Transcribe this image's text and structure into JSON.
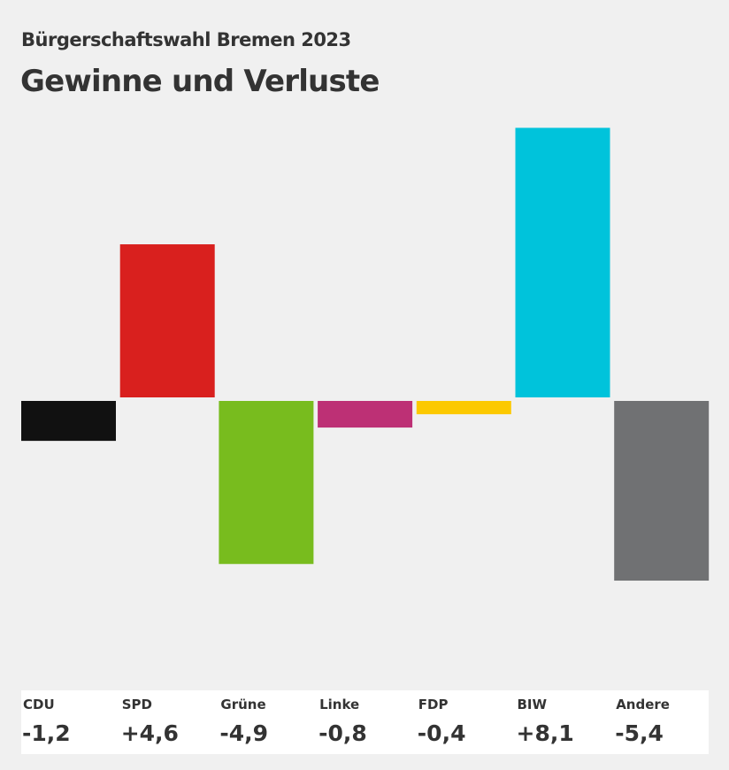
{
  "chart_data": {
    "type": "bar",
    "subtitle": "Bürgerschaftswahl Bremen 2023",
    "title": "Gewinne und Verluste",
    "categories": [
      "CDU",
      "SPD",
      "Grüne",
      "Linke",
      "FDP",
      "BIW",
      "Andere"
    ],
    "values": [
      -1.2,
      4.6,
      -4.9,
      -0.8,
      -0.4,
      8.1,
      -5.4
    ],
    "value_labels": [
      "-1,2",
      "+4,6",
      "-4,9",
      "-0,8",
      "-0,4",
      "+8,1",
      "-5,4"
    ],
    "colors": [
      "#111111",
      "#d9201e",
      "#78bc1e",
      "#bd3075",
      "#fcc900",
      "#00c3db",
      "#707173"
    ],
    "grid": false,
    "ylim": [
      -8.1,
      8.1
    ]
  }
}
